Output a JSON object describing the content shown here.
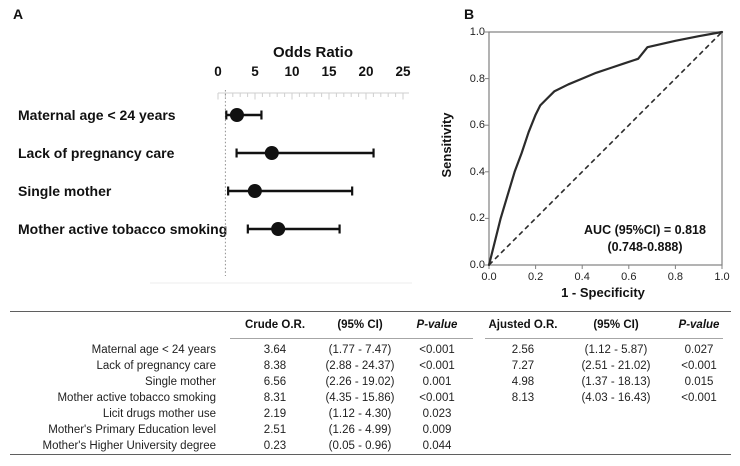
{
  "figure": {
    "panel_a_label": "A",
    "panel_b_label": "B"
  },
  "colors": {
    "ink": "#111111",
    "axis_light": "#cfcfcf",
    "ref_dotted": "#8f8f8f",
    "roc_frame": "#808080",
    "roc_line": "#2b2b2b",
    "rule_dark": "#5f5f5f",
    "rule_light": "#a6a6a6"
  },
  "chart_data": [
    {
      "id": "forest-plot",
      "type": "scatter",
      "variant": "forest-plot",
      "title": "Odds Ratio",
      "categories": [
        "Maternal age < 24 years",
        "Lack of pregnancy care",
        "Single mother",
        "Mother active tobacco smoking"
      ],
      "odds_ratio": [
        2.56,
        7.27,
        4.98,
        8.13
      ],
      "ci_low": [
        1.12,
        2.51,
        1.37,
        4.03
      ],
      "ci_high": [
        5.87,
        21.02,
        18.13,
        16.43
      ],
      "x_ticks": [
        0,
        5,
        10,
        15,
        20,
        25
      ],
      "xlim": [
        0,
        25.8
      ],
      "reference_line_x": 1,
      "grid": false
    },
    {
      "id": "roc-curve",
      "type": "line",
      "xlabel": "1 - Specificity",
      "ylabel": "Sensitivity",
      "x_ticks": [
        "0.0",
        "0.2",
        "0.4",
        "0.6",
        "0.8",
        "1.0"
      ],
      "y_ticks": [
        "0.0",
        "0.2",
        "0.4",
        "0.6",
        "0.8",
        "1.0"
      ],
      "xlim": [
        0,
        1
      ],
      "ylim": [
        0,
        1
      ],
      "diagonal_reference": true,
      "annotation_line1": "AUC (95%CI) = 0.818",
      "annotation_line2": "(0.748-0.888)",
      "roc_points": [
        [
          0,
          0
        ],
        [
          0.02,
          0.08
        ],
        [
          0.05,
          0.2
        ],
        [
          0.08,
          0.3
        ],
        [
          0.11,
          0.4
        ],
        [
          0.14,
          0.48
        ],
        [
          0.17,
          0.57
        ],
        [
          0.2,
          0.645
        ],
        [
          0.22,
          0.685
        ],
        [
          0.25,
          0.715
        ],
        [
          0.28,
          0.745
        ],
        [
          0.34,
          0.775
        ],
        [
          0.4,
          0.8
        ],
        [
          0.46,
          0.825
        ],
        [
          0.52,
          0.845
        ],
        [
          0.58,
          0.865
        ],
        [
          0.64,
          0.885
        ],
        [
          0.68,
          0.935
        ],
        [
          0.8,
          0.962
        ],
        [
          0.9,
          0.982
        ],
        [
          1,
          1
        ]
      ]
    },
    {
      "id": "odds-ratio-table",
      "type": "table",
      "headers": [
        "",
        "Crude O.R.",
        "(95% CI)",
        "P-value",
        "Ajusted O.R.",
        "(95% CI)",
        "P-value"
      ],
      "rows": [
        [
          "Maternal age < 24 years",
          "3.64",
          "(1.77 - 7.47)",
          "<0.001",
          "2.56",
          "(1.12 - 5.87)",
          "0.027"
        ],
        [
          "Lack of pregnancy care",
          "8.38",
          "(2.88 - 24.37)",
          "<0.001",
          "7.27",
          "(2.51 - 21.02)",
          "<0.001"
        ],
        [
          "Single mother",
          "6.56",
          "(2.26 - 19.02)",
          "0.001",
          "4.98",
          "(1.37 - 18.13)",
          "0.015"
        ],
        [
          "Mother active tobacco smoking",
          "8.31",
          "(4.35 - 15.86)",
          "<0.001",
          "8.13",
          "(4.03 - 16.43)",
          "<0.001"
        ],
        [
          "Licit drugs mother use",
          "2.19",
          "(1.12 - 4.30)",
          "0.023",
          "",
          "",
          ""
        ],
        [
          "Mother's Primary Education level",
          "2.51",
          "(1.26 - 4.99)",
          "0.009",
          "",
          "",
          ""
        ],
        [
          "Mother's Higher University degree",
          "0.23",
          "(0.05 - 0.96)",
          "0.044",
          "",
          "",
          ""
        ]
      ]
    }
  ]
}
